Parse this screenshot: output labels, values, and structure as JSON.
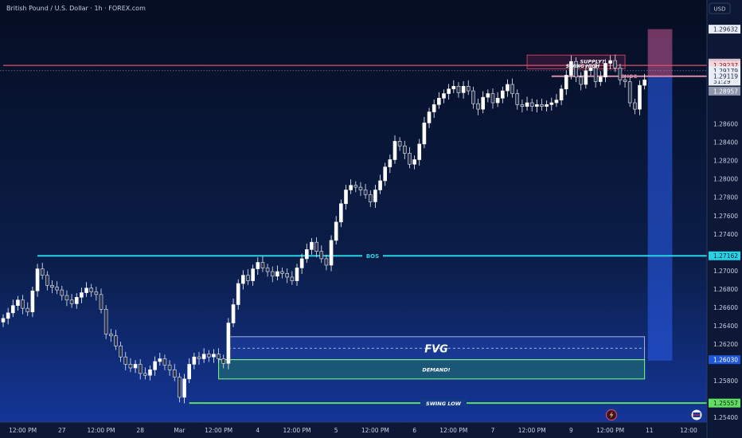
{
  "chart_data": {
    "type": "candlestick",
    "title": "British Pound / U.S. Dollar · 1h · FOREX.com",
    "currency_label": "USD",
    "y_axis": {
      "min": 1.2535,
      "max": 1.2995,
      "ticks": [
        "1.28600",
        "1.28400",
        "1.28200",
        "1.28000",
        "1.27800",
        "1.27600",
        "1.27400",
        "1.27000",
        "1.26800",
        "1.26600",
        "1.26400",
        "1.26200",
        "1.25800",
        "1.25400"
      ],
      "tick_values": [
        1.286,
        1.284,
        1.282,
        1.28,
        1.278,
        1.276,
        1.274,
        1.27,
        1.268,
        1.266,
        1.264,
        1.262,
        1.258,
        1.254
      ]
    },
    "x_axis": {
      "labels": [
        "12:00 PM",
        "27",
        "12:00 PM",
        "28",
        "Mar",
        "12:00 PM",
        "4",
        "12:00 PM",
        "5",
        "12:00 PM",
        "6",
        "12:00 PM",
        "7",
        "12:00 PM",
        "9",
        "12:00 PM",
        "11",
        "12:00"
      ],
      "positions": [
        4,
        12,
        20,
        28,
        36,
        44,
        52,
        60,
        68,
        76,
        84,
        92,
        100,
        108,
        116,
        124,
        132,
        140
      ]
    },
    "price_labels": [
      {
        "text": "1.29632",
        "value": 1.29632,
        "style": "light"
      },
      {
        "text": "1.29262",
        "value": 1.29262,
        "style": "supply"
      },
      {
        "text": "1.29237",
        "value": 1.29237,
        "style": "red"
      },
      {
        "text": "1.29179",
        "value": 1.29179,
        "style": "light"
      },
      {
        "text": "51:29",
        "value": 1.29065,
        "style": "light"
      },
      {
        "text": "1.29119",
        "value": 1.29119,
        "style": "light"
      },
      {
        "text": "1.28957",
        "value": 1.28957,
        "style": "gray"
      },
      {
        "text": "1.27162",
        "value": 1.27162,
        "style": "cyan"
      },
      {
        "text": "1.26030",
        "value": 1.2603,
        "style": "blue"
      },
      {
        "text": "1.25557",
        "value": 1.25557,
        "style": "green"
      }
    ],
    "levels": [
      {
        "name": "BOS",
        "value": 1.27162,
        "from": 7,
        "color": "#29d3e6"
      },
      {
        "name": "SWING LOW",
        "value": 1.25557,
        "from": 38,
        "color": "#5ee05e"
      },
      {
        "name": "SWING HIGH",
        "value": 1.29237,
        "from": 0,
        "color": "#e0506a"
      },
      {
        "name": "CHOC",
        "value": 1.29119,
        "from": 112,
        "color": "#d78aa6"
      }
    ],
    "zones": [
      {
        "name": "FVG",
        "label": "FVG",
        "from": 46,
        "to": 131,
        "top": 1.2628,
        "bottom": 1.2603
      },
      {
        "name": "DEMAND",
        "label": "DEMAND!",
        "from": 44,
        "to": 131,
        "top": 1.2603,
        "bottom": 1.2582
      },
      {
        "name": "SUPPLY",
        "label": "SUPPLY?",
        "from": 107,
        "to": 127,
        "top": 1.2935,
        "bottom": 1.292
      }
    ],
    "annotations": {
      "bos": "BOS",
      "fvg": "FVG",
      "demand": "DEMAND!",
      "swing_low": "SWING LOW",
      "swing_high": "SWING HIGH",
      "choc": "CHOC",
      "supply": "SUPPLY?"
    },
    "closes": [
      1.2648,
      1.2654,
      1.2662,
      1.2668,
      1.2659,
      1.2655,
      1.2678,
      1.2702,
      1.2695,
      1.2684,
      1.2682,
      1.2679,
      1.2673,
      1.2668,
      1.2664,
      1.2671,
      1.2676,
      1.2681,
      1.2677,
      1.2674,
      1.2658,
      1.2631,
      1.2629,
      1.2618,
      1.2606,
      1.2598,
      1.2594,
      1.2598,
      1.2588,
      1.2586,
      1.2592,
      1.2601,
      1.2604,
      1.2597,
      1.2592,
      1.2584,
      1.2562,
      1.2582,
      1.2598,
      1.2606,
      1.2604,
      1.2609,
      1.2606,
      1.2609,
      1.2604,
      1.2599,
      1.2643,
      1.2663,
      1.2686,
      1.2695,
      1.2689,
      1.2702,
      1.2709,
      1.2703,
      1.2699,
      1.2694,
      1.2699,
      1.2697,
      1.2693,
      1.2689,
      1.2703,
      1.2713,
      1.2723,
      1.2731,
      1.2721,
      1.2713,
      1.2706,
      1.2733,
      1.2753,
      1.2773,
      1.2788,
      1.2793,
      1.2791,
      1.2788,
      1.2783,
      1.2775,
      1.2788,
      1.2798,
      1.2813,
      1.2821,
      1.2841,
      1.2836,
      1.2828,
      1.2816,
      1.2821,
      1.2838,
      1.2861,
      1.2873,
      1.2881,
      1.2888,
      1.2893,
      1.2898,
      1.2901,
      1.2894,
      1.2901,
      1.2896,
      1.2882,
      1.2876,
      1.2889,
      1.2893,
      1.2883,
      1.2888,
      1.2896,
      1.2903,
      1.2893,
      1.2881,
      1.2879,
      1.2883,
      1.2879,
      1.2881,
      1.2879,
      1.2881,
      1.2883,
      1.2886,
      1.2898,
      1.2913,
      1.2928,
      1.2911,
      1.2903,
      1.2918,
      1.2921,
      1.2906,
      1.2911,
      1.2926,
      1.2929,
      1.2921,
      1.2908,
      1.2906,
      1.2883,
      1.2876,
      1.2902,
      1.2908
    ],
    "projection": {
      "from": 131,
      "to": 136,
      "top": 1.29632,
      "mid": 1.2912,
      "bottom": 1.2602
    }
  },
  "bottom_icons": [
    "lightning-icon",
    "flag-icon"
  ]
}
